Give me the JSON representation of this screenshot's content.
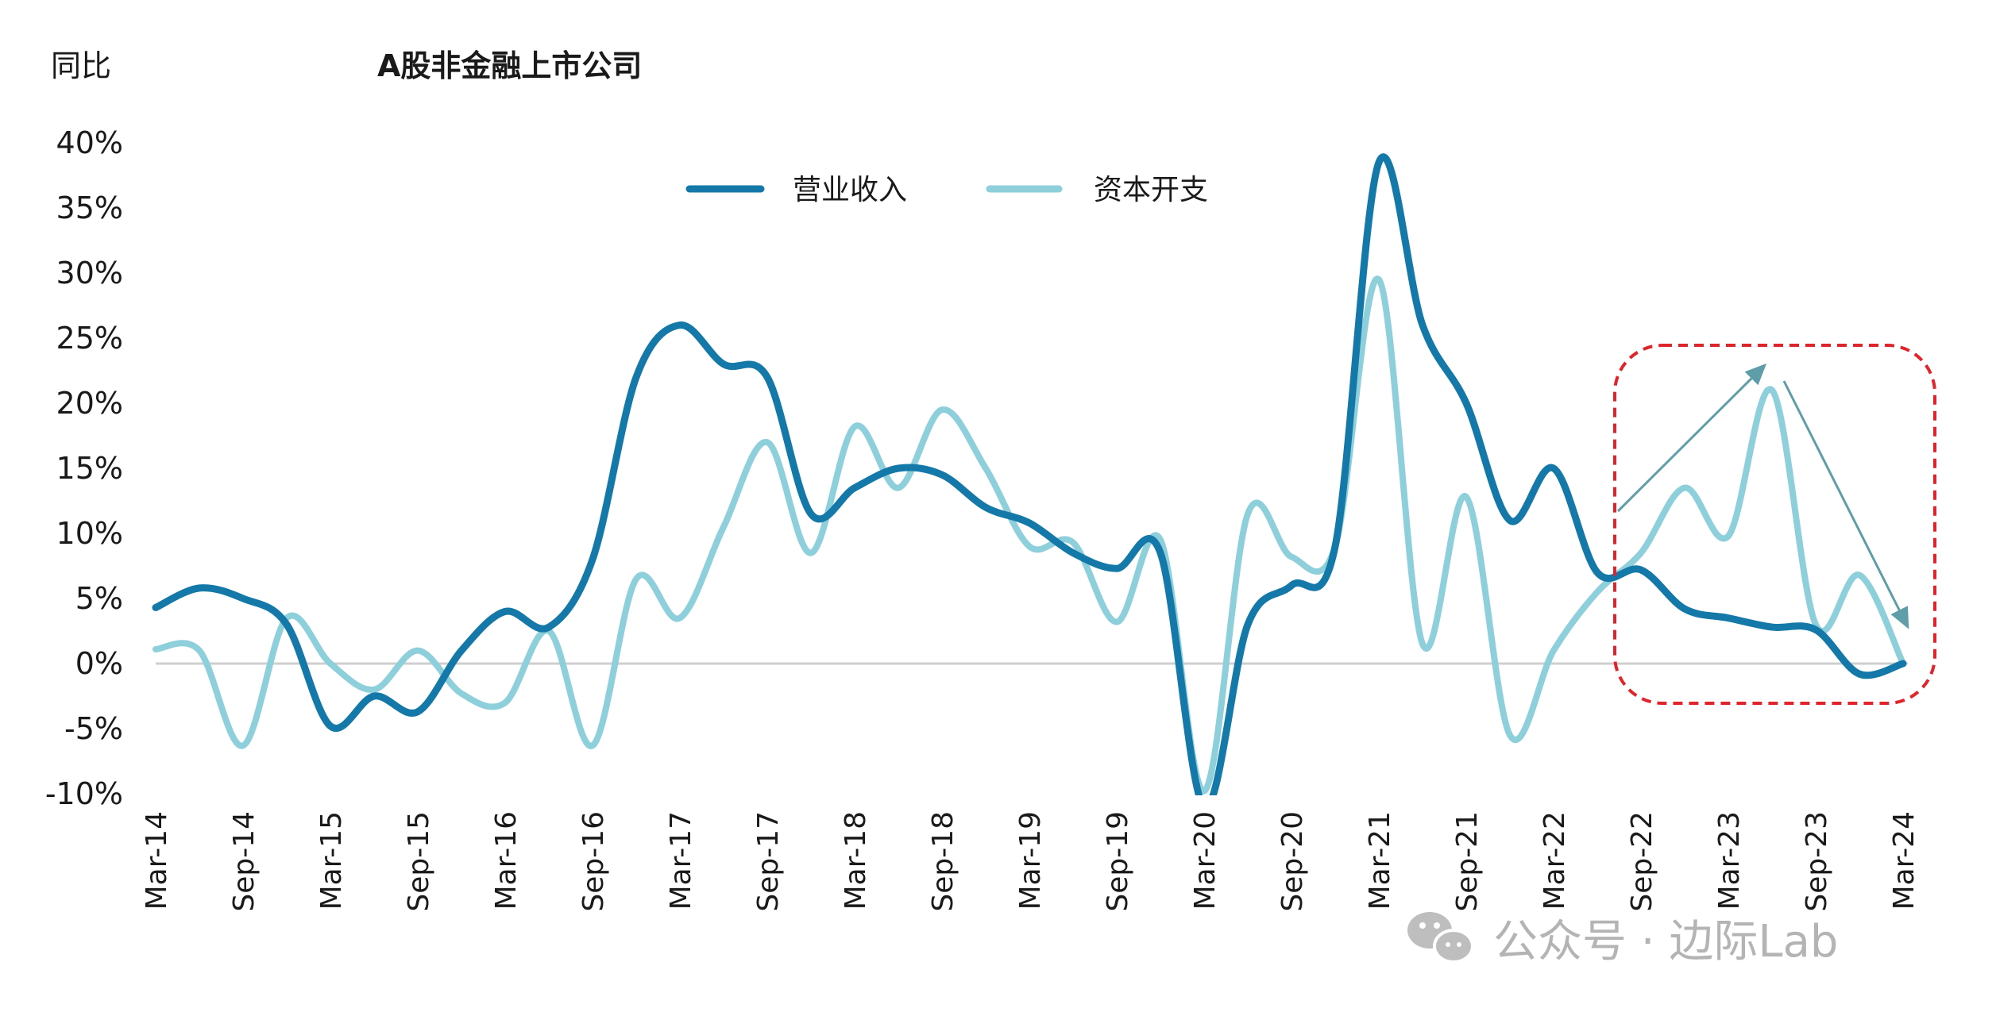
{
  "chart_data": {
    "type": "line",
    "title": "A股非金融上市公司",
    "ylabel": "同比",
    "xlabel": "",
    "ylim": [
      -10,
      40
    ],
    "yticks": [
      "40%",
      "35%",
      "30%",
      "25%",
      "20%",
      "15%",
      "10%",
      "5%",
      "0%",
      "-5%",
      "-10%"
    ],
    "ytick_values": [
      40,
      35,
      30,
      25,
      20,
      15,
      10,
      5,
      0,
      -5,
      -10
    ],
    "xtick_labels": [
      "Mar-14",
      "Sep-14",
      "Mar-15",
      "Sep-15",
      "Mar-16",
      "Sep-16",
      "Mar-17",
      "Sep-17",
      "Mar-18",
      "Sep-18",
      "Mar-19",
      "Sep-19",
      "Mar-20",
      "Sep-20",
      "Mar-21",
      "Sep-21",
      "Mar-22",
      "Sep-22",
      "Mar-23",
      "Sep-23",
      "Mar-24"
    ],
    "x_frequency": "quarterly",
    "legend_placement": "top-center",
    "grid": false,
    "series": [
      {
        "name": "营业收入",
        "color": "#1479a8",
        "values": [
          4.3,
          5.8,
          5.0,
          3.0,
          -4.8,
          -2.5,
          -3.7,
          1.0,
          4.0,
          2.8,
          8.0,
          22.0,
          26.0,
          23.0,
          22.0,
          11.5,
          13.5,
          15.0,
          14.5,
          12.0,
          10.8,
          8.5,
          7.3,
          8.5,
          -11.0,
          3.0,
          6.0,
          9.0,
          38.5,
          26.0,
          20.0,
          11.0,
          15.0,
          7.0,
          7.2,
          4.2,
          3.5,
          2.8,
          2.6,
          -0.8,
          0.0
        ]
      },
      {
        "name": "资本开支",
        "color": "#8ecfdc",
        "values": [
          1.1,
          1.0,
          -6.3,
          3.5,
          0.0,
          -2.0,
          1.0,
          -2.3,
          -3.0,
          2.5,
          -6.3,
          6.5,
          3.5,
          10.5,
          17.0,
          8.5,
          18.2,
          13.5,
          19.5,
          15.0,
          9.0,
          9.3,
          3.2,
          9.5,
          -9.8,
          11.5,
          8.2,
          9.0,
          29.5,
          1.5,
          12.8,
          -5.5,
          1.0,
          5.5,
          8.5,
          13.5,
          9.8,
          21.0,
          3.0,
          6.8,
          0.0
        ]
      }
    ],
    "annotations": {
      "highlight_box": {
        "from": "Jun-22",
        "to": "Mar-24",
        "color": "#e0242b",
        "style": "dashed"
      },
      "arrow_up": {
        "from": "Jun-22",
        "to": "Jun-23",
        "color": "#5f9ea8"
      },
      "arrow_down": {
        "from": "Jun-23",
        "to": "Mar-24",
        "color": "#5f9ea8"
      }
    }
  },
  "watermark": {
    "text": "公众号 · 边际Lab"
  }
}
